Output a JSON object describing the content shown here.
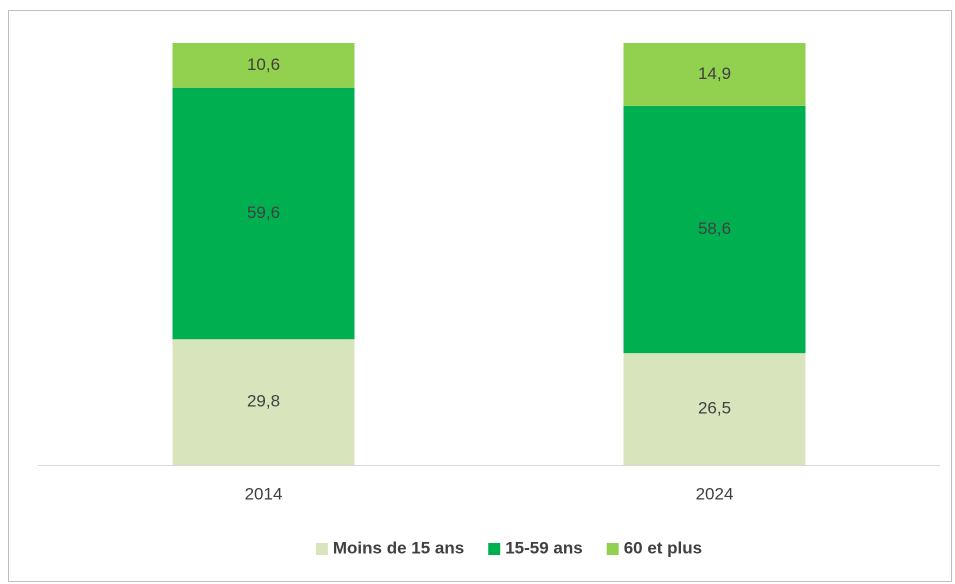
{
  "chart_data": {
    "type": "stacked_bar",
    "categories": [
      "2014",
      "2024"
    ],
    "series": [
      {
        "name": "Moins de 15 ans",
        "color": "#d8e4bc",
        "values": [
          29.8,
          26.5
        ],
        "value_labels": [
          "29,8",
          "26,5"
        ]
      },
      {
        "name": "15-59 ans",
        "color": "#00b050",
        "values": [
          59.6,
          58.6
        ],
        "value_labels": [
          "59,6",
          "58,6"
        ]
      },
      {
        "name": "60 et plus",
        "color": "#92d050",
        "values": [
          10.6,
          14.9
        ],
        "value_labels": [
          "10,6",
          "14,9"
        ]
      }
    ],
    "ylim": [
      0,
      100
    ],
    "legend": "bottom"
  }
}
